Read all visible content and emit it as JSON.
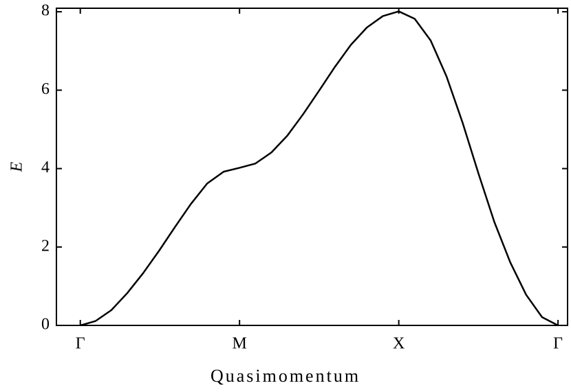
{
  "chart_data": {
    "type": "line",
    "xlabel": "Quasimomentum",
    "ylabel": "E",
    "x": [
      0,
      0.095,
      0.195,
      0.294,
      0.394,
      0.494,
      0.593,
      0.693,
      0.797,
      0.9,
      1.0,
      1.1,
      1.2,
      1.3,
      1.4,
      1.5,
      1.6,
      1.7,
      1.8,
      1.9,
      2.0,
      2.1,
      2.2,
      2.3,
      2.4,
      2.5,
      2.6,
      2.7,
      2.8,
      2.9,
      3.0
    ],
    "series": [
      {
        "color": "#000000",
        "values": [
          0,
          0.11,
          0.39,
          0.82,
          1.33,
          1.9,
          2.5,
          3.09,
          3.62,
          3.92,
          4.02,
          4.13,
          4.41,
          4.84,
          5.39,
          5.99,
          6.6,
          7.16,
          7.6,
          7.89,
          8.01,
          7.82,
          7.27,
          6.35,
          5.18,
          3.88,
          2.64,
          1.61,
          0.78,
          0.21,
          0
        ]
      }
    ],
    "xlim": [
      -0.15,
      3.06
    ],
    "xticks": [
      {
        "value": 0,
        "label": "Γ"
      },
      {
        "value": 1,
        "label": "M"
      },
      {
        "value": 2,
        "label": "X"
      },
      {
        "value": 3,
        "label": "Γ"
      }
    ],
    "ylim": [
      0,
      8.09
    ],
    "yticks": [
      0,
      2,
      4,
      6,
      8
    ],
    "grid": false
  }
}
